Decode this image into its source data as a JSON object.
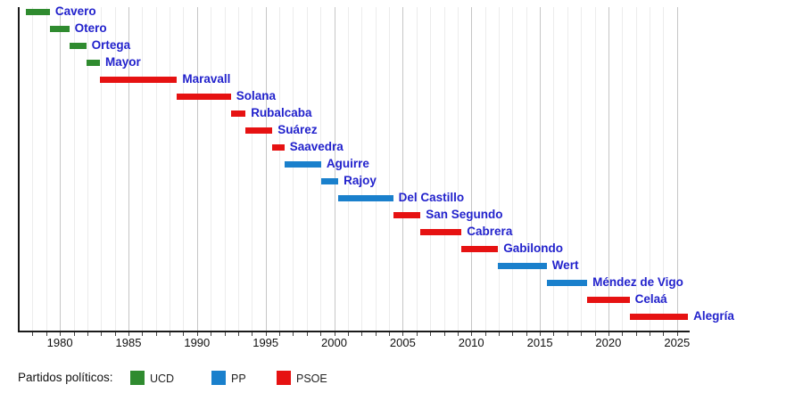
{
  "chart_data": {
    "type": "timeline",
    "description": "Gantt-style timeline of Spanish education ministers by term, colored by political party",
    "axis": {
      "min": 1977,
      "max": 2025.85,
      "tick_labels": [
        1980,
        1985,
        1990,
        1995,
        2000,
        2005,
        2010,
        2015,
        2020,
        2025
      ],
      "gridline_interval_years": 1,
      "major_gridline_interval_years": 5,
      "grid": true
    },
    "parties": {
      "UCD": "#2f8b2f",
      "PP": "#1a80cc",
      "PSOE": "#e61212"
    },
    "label_color": "#2222cc",
    "bars": [
      {
        "name": "Cavero",
        "party": "UCD",
        "start": 1977.5,
        "end": 1979.27
      },
      {
        "name": "Otero",
        "party": "UCD",
        "start": 1979.27,
        "end": 1980.68
      },
      {
        "name": "Ortega",
        "party": "UCD",
        "start": 1980.68,
        "end": 1981.92
      },
      {
        "name": "Mayor",
        "party": "UCD",
        "start": 1981.92,
        "end": 1982.92
      },
      {
        "name": "Maravall",
        "party": "PSOE",
        "start": 1982.92,
        "end": 1988.54
      },
      {
        "name": "Solana",
        "party": "PSOE",
        "start": 1988.54,
        "end": 1992.47
      },
      {
        "name": "Rubalcaba",
        "party": "PSOE",
        "start": 1992.47,
        "end": 1993.54
      },
      {
        "name": "Suárez",
        "party": "PSOE",
        "start": 1993.54,
        "end": 1995.5
      },
      {
        "name": "Saavedra",
        "party": "PSOE",
        "start": 1995.5,
        "end": 1996.37
      },
      {
        "name": "Aguirre",
        "party": "PP",
        "start": 1996.37,
        "end": 1999.05
      },
      {
        "name": "Rajoy",
        "party": "PP",
        "start": 1999.05,
        "end": 2000.3
      },
      {
        "name": "Del Castillo",
        "party": "PP",
        "start": 2000.3,
        "end": 2004.3
      },
      {
        "name": "San Segundo",
        "party": "PSOE",
        "start": 2004.3,
        "end": 2006.29
      },
      {
        "name": "Cabrera",
        "party": "PSOE",
        "start": 2006.29,
        "end": 2009.29
      },
      {
        "name": "Gabilondo",
        "party": "PSOE",
        "start": 2009.29,
        "end": 2011.96
      },
      {
        "name": "Wert",
        "party": "PP",
        "start": 2011.96,
        "end": 2015.5
      },
      {
        "name": "Méndez de Vigo",
        "party": "PP",
        "start": 2015.5,
        "end": 2018.45
      },
      {
        "name": "Celaá",
        "party": "PSOE",
        "start": 2018.45,
        "end": 2021.54
      },
      {
        "name": "Alegría",
        "party": "PSOE",
        "start": 2021.54,
        "end": 2025.8
      }
    ],
    "legend": {
      "title": "Partidos políticos:",
      "position": "bottom",
      "entries": [
        {
          "label": "UCD",
          "color": "#2f8b2f"
        },
        {
          "label": "PP",
          "color": "#1a80cc"
        },
        {
          "label": "PSOE",
          "color": "#e61212"
        }
      ]
    }
  }
}
